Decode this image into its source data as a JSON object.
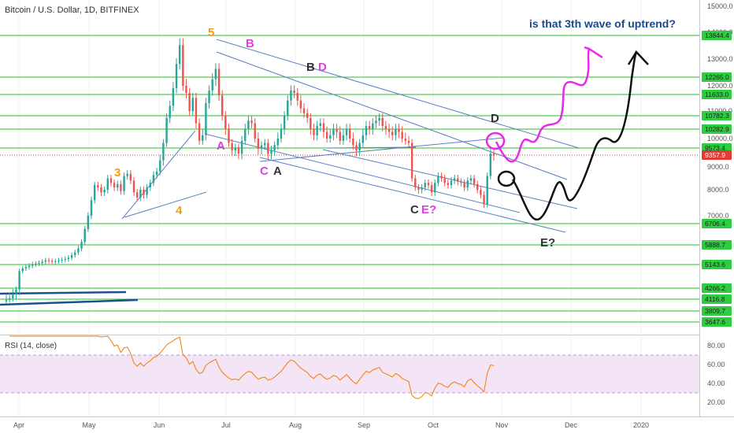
{
  "chart_data": {
    "type": "candlestick",
    "title": "Bitcoin / U.S. Dollar, 1D, BITFINEX",
    "annotation": "is that 3th wave of uptrend?",
    "x_ticks": [
      "Apr",
      "May",
      "Jun",
      "Jul",
      "Aug",
      "Sep",
      "Oct",
      "Nov",
      "Dec",
      "2020"
    ],
    "y_ticks": [
      "15000.0",
      "14000.0",
      "13000.0",
      "12000.0",
      "11000.0",
      "10000.0",
      "9000.0",
      "8000.0",
      "7000.0"
    ],
    "price_levels": [
      {
        "label": "13844.4",
        "value": 13844.4
      },
      {
        "label": "12265.0",
        "value": 12265.0
      },
      {
        "label": "11633.0",
        "value": 11633.0
      },
      {
        "label": "10782.3",
        "value": 10782.3
      },
      {
        "label": "10282.9",
        "value": 10282.9
      },
      {
        "label": "9573.4",
        "value": 9573.4
      },
      {
        "label": "6706.4",
        "value": 6706.4
      },
      {
        "label": "5888.7",
        "value": 5888.7
      },
      {
        "label": "5143.6",
        "value": 5143.6
      },
      {
        "label": "4266.2",
        "value": 4266.2
      },
      {
        "label": "4116.8",
        "value": 4116.8
      },
      {
        "label": "3809.7",
        "value": 3809.7
      },
      {
        "label": "3647.6",
        "value": 3647.6
      }
    ],
    "current_price": {
      "label": "9357.9",
      "value": 9357.9
    },
    "wave_labels": [
      {
        "text": "5",
        "color": "#f39c12"
      },
      {
        "text": "B",
        "color": "#e040e0"
      },
      {
        "text": "B",
        "color": "#333333"
      },
      {
        "text": "D",
        "color": "#e040e0"
      },
      {
        "text": "A",
        "color": "#e040e0"
      },
      {
        "text": "C",
        "color": "#e040e0"
      },
      {
        "text": "A",
        "color": "#333333"
      },
      {
        "text": "3",
        "color": "#f39c12"
      },
      {
        "text": "4",
        "color": "#f39c12"
      },
      {
        "text": "D",
        "color": "#333333"
      },
      {
        "text": "C",
        "color": "#333333"
      },
      {
        "text": "E?",
        "color": "#e040e0"
      },
      {
        "text": "E?",
        "color": "#333333"
      }
    ],
    "closes": [
      4100,
      4130,
      4180,
      4250,
      4900,
      5000,
      5050,
      5100,
      5150,
      5180,
      5200,
      5250,
      5300,
      5280,
      5260,
      5270,
      5300,
      5320,
      5350,
      5400,
      5500,
      5600,
      5750,
      6000,
      6500,
      7000,
      7600,
      8200,
      8100,
      7900,
      8000,
      8500,
      8300,
      8100,
      8250,
      7950,
      8600,
      8700,
      8400,
      7900,
      7700,
      8000,
      7800,
      8100,
      8300,
      8650,
      8800,
      9200,
      9800,
      10700,
      11200,
      11900,
      12800,
      13500,
      12000,
      11700,
      11000,
      11500,
      10500,
      9900,
      10100,
      11300,
      11800,
      12200,
      12600,
      11600,
      10800,
      10300,
      9800,
      9500,
      9600,
      9400,
      9900,
      10300,
      10600,
      10500,
      10000,
      9550,
      9700,
      9800,
      9400,
      9500,
      9700,
      10000,
      10300,
      10800,
      11400,
      11800,
      11700,
      11400,
      11100,
      10900,
      10700,
      10300,
      10100,
      10400,
      10500,
      10200,
      10000,
      10100,
      10300,
      10200,
      9900,
      10100,
      10300,
      10000,
      9700,
      9500,
      9800,
      10100,
      10400,
      10300,
      10500,
      10600,
      10700,
      10400,
      10300,
      10200,
      10100,
      10300,
      10200,
      10000,
      9900,
      9800,
      8500,
      8100,
      8000,
      8100,
      8300,
      8200,
      7900,
      8300,
      8600,
      8500,
      8300,
      8200,
      8400,
      8500,
      8350,
      8300,
      8100,
      8400,
      8500,
      8250,
      8000,
      7800,
      7450,
      8600,
      9400,
      9350
    ],
    "rsi": {
      "title": "RSI (14, close)",
      "levels": [
        70,
        30
      ],
      "y_ticks": [
        "80.00",
        "60.00",
        "40.00",
        "20.00"
      ],
      "current": 63
    }
  }
}
